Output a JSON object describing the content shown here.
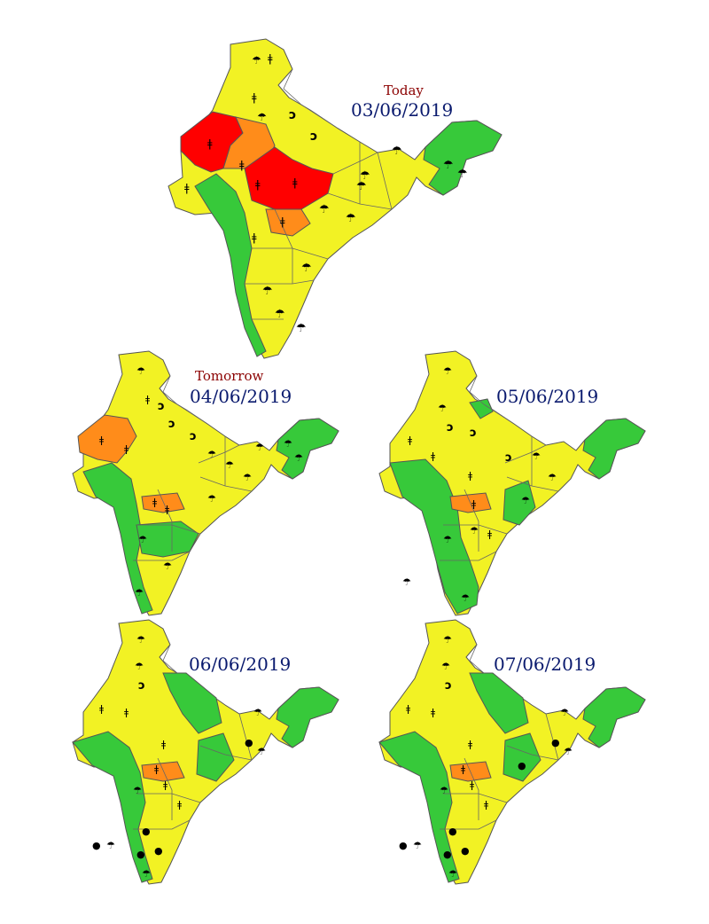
{
  "colors": {
    "red": "#ff0000",
    "orange": "#ff8c1a",
    "yellow": "#f2f224",
    "green": "#37c93a",
    "border": "#555555",
    "subtitle": "#8b0000",
    "date": "#0a1a6e"
  },
  "maps": [
    {
      "subtitle": "Today",
      "date": "03/06/2019",
      "warning_levels": [
        "red",
        "orange",
        "yellow",
        "green"
      ]
    },
    {
      "subtitle": "Tomorrow",
      "date": "04/06/2019",
      "warning_levels": [
        "orange",
        "yellow",
        "green"
      ]
    },
    {
      "subtitle": "",
      "date": "05/06/2019",
      "warning_levels": [
        "orange",
        "yellow",
        "green"
      ]
    },
    {
      "subtitle": "",
      "date": "06/06/2019",
      "warning_levels": [
        "orange",
        "yellow",
        "green"
      ]
    },
    {
      "subtitle": "",
      "date": "07/06/2019",
      "warning_levels": [
        "orange",
        "yellow",
        "green"
      ]
    }
  ],
  "icon_types": [
    "thunderstorm-icon",
    "heat-wave-icon",
    "dust-storm-icon",
    "heavy-rain-icon",
    "strong-wind-icon"
  ]
}
